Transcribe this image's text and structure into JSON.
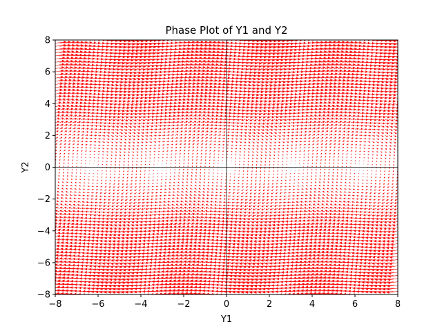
{
  "chart_data": {
    "type": "quiver",
    "title": "Phase Plot of Y1 and Y2",
    "xlabel": "Y1",
    "ylabel": "Y2",
    "xlim": [
      -8,
      8
    ],
    "ylim": [
      -8,
      8
    ],
    "xticks": [
      -8,
      -6,
      -4,
      -2,
      0,
      2,
      4,
      6,
      8
    ],
    "yticks": [
      -8,
      -6,
      -4,
      -2,
      0,
      2,
      4,
      6,
      8
    ],
    "grid": {
      "x_min": -8,
      "x_max": 8,
      "x_count": 81,
      "y_min": -8,
      "y_max": 8,
      "y_count": 81
    },
    "vector_field": {
      "dy1_dt": "Y2",
      "dy2_dt": "-sin(Y1)"
    },
    "reference_lines": [
      {
        "orientation": "horizontal",
        "value": 0
      },
      {
        "orientation": "vertical",
        "value": 0
      }
    ],
    "arrow_color": "#ff0000",
    "line_color": "#000000",
    "legend": "none"
  }
}
